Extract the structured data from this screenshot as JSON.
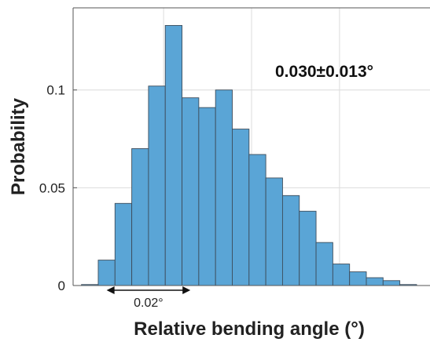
{
  "chart_data": {
    "type": "bar",
    "title": "",
    "xlabel": "Relative bending angle (°)",
    "ylabel": "Probability",
    "ylim": [
      0,
      0.142
    ],
    "yticks": [
      {
        "value": 0,
        "label": "0"
      },
      {
        "value": 0.05,
        "label": "0.05"
      },
      {
        "value": 0.1,
        "label": "0.1"
      }
    ],
    "xtick_values": [
      0.0273,
      0.0378,
      0.0483
    ],
    "xlim": [
      0.0165,
      0.0591
    ],
    "grid": true,
    "bin_width": 0.002,
    "bin_starts": [
      0.0175,
      0.0195,
      0.0215,
      0.0235,
      0.0255,
      0.0275,
      0.0295,
      0.0315,
      0.0335,
      0.0355,
      0.0375,
      0.0395,
      0.0415,
      0.0435,
      0.0455,
      0.0475,
      0.0495,
      0.0515,
      0.0535,
      0.0555
    ],
    "values": [
      0.0005,
      0.013,
      0.042,
      0.07,
      0.102,
      0.133,
      0.096,
      0.091,
      0.1,
      0.08,
      0.067,
      0.055,
      0.046,
      0.038,
      0.022,
      0.011,
      0.007,
      0.004,
      0.0025,
      0.0005
    ],
    "bar_color": "#5aa5d6",
    "bar_edge_color": "#3d4d5c",
    "annotation": "0.030±0.013°",
    "span": {
      "from": 0.0205,
      "to": 0.0305,
      "label": "0.02°"
    }
  }
}
